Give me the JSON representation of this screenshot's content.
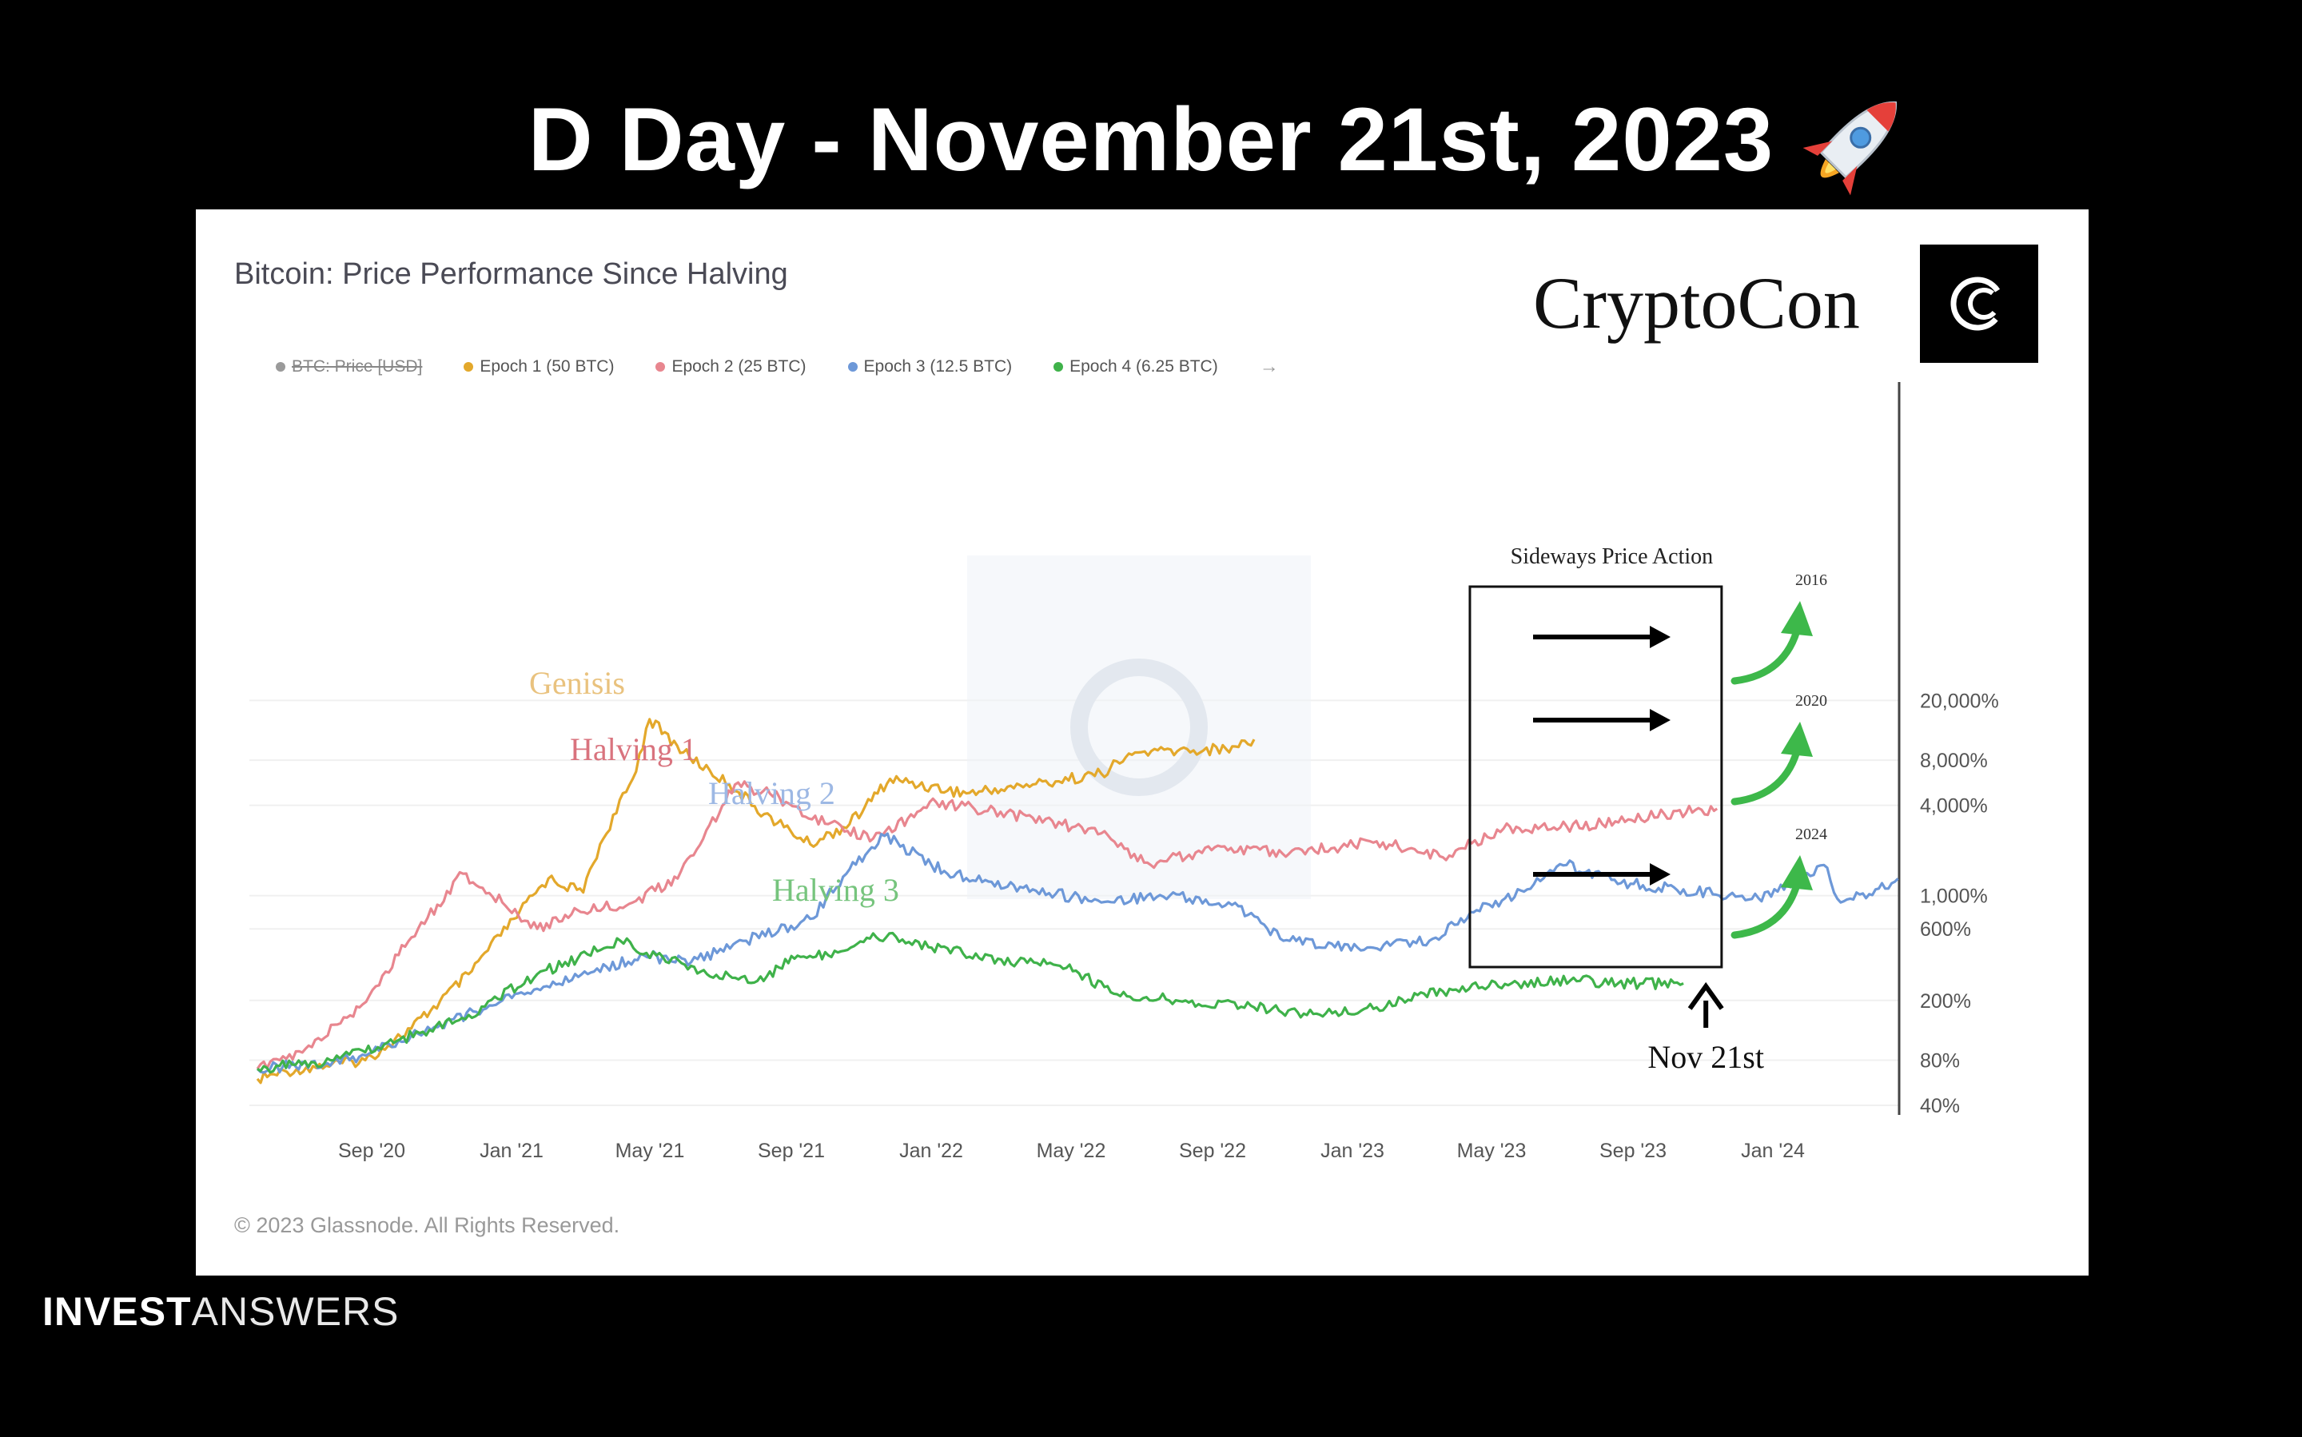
{
  "headline": "D Day - November 21st, 2023",
  "footer": {
    "brand_bold": "INVEST",
    "brand_light": "ANSWERS"
  },
  "brand": {
    "name": "CryptoCon",
    "logo_glyph": "C"
  },
  "copyright": "© 2023 Glassnode. All Rights Reserved.",
  "chart_data": {
    "type": "line",
    "title": "Bitcoin: Price Performance Since Halving",
    "legend": [
      {
        "name": "BTC: Price [USD]",
        "color": "#9a9a9a",
        "hidden": true
      },
      {
        "name": "Epoch 1 (50 BTC)",
        "color": "#e3a82b"
      },
      {
        "name": "Epoch 2 (25 BTC)",
        "color": "#e8868f"
      },
      {
        "name": "Epoch 3 (12.5 BTC)",
        "color": "#6d98d8"
      },
      {
        "name": "Epoch 4 (6.25 BTC)",
        "color": "#3fb24a"
      }
    ],
    "x_ticks": [
      "Sep '20",
      "Jan '21",
      "May '21",
      "Sep '21",
      "Jan '22",
      "May '22",
      "Sep '22",
      "Jan '23",
      "May '23",
      "Sep '23",
      "Jan '24"
    ],
    "x_range": [
      "2020-05-11",
      "2024-05-11"
    ],
    "y_scale": "log",
    "y_ticks": [
      "20,000%",
      "8,000%",
      "4,000%",
      "1,000%",
      "600%",
      "200%",
      "80%",
      "40%"
    ],
    "series": [
      {
        "color": "#e3a82b",
        "points": [
          [
            "2020-05-11",
            60
          ],
          [
            "2020-06-15",
            70
          ],
          [
            "2020-08-15",
            80
          ],
          [
            "2020-09-25",
            130
          ],
          [
            "2020-11-15",
            300
          ],
          [
            "2020-12-25",
            700
          ],
          [
            "2021-01-25",
            1300
          ],
          [
            "2021-02-25",
            1050
          ],
          [
            "2021-03-12",
            2200
          ],
          [
            "2021-04-10",
            6000
          ],
          [
            "2021-04-25",
            15000
          ],
          [
            "2021-05-25",
            9000
          ],
          [
            "2021-07-05",
            5500
          ],
          [
            "2021-08-05",
            3500
          ],
          [
            "2021-09-15",
            2200
          ],
          [
            "2021-10-20",
            3000
          ],
          [
            "2021-11-25",
            6000
          ],
          [
            "2022-02-01",
            4800
          ],
          [
            "2022-04-01",
            5500
          ],
          [
            "2022-06-01",
            6500
          ],
          [
            "2022-07-01",
            9000
          ],
          [
            "2022-09-20",
            9500
          ],
          [
            "2022-10-15",
            11000
          ]
        ]
      },
      {
        "color": "#e8868f",
        "points": [
          [
            "2020-05-11",
            70
          ],
          [
            "2020-06-20",
            90
          ],
          [
            "2020-08-10",
            180
          ],
          [
            "2020-10-01",
            600
          ],
          [
            "2020-11-10",
            1400
          ],
          [
            "2020-12-15",
            900
          ],
          [
            "2021-01-15",
            600
          ],
          [
            "2021-02-20",
            800
          ],
          [
            "2021-04-10",
            900
          ],
          [
            "2021-05-20",
            1300
          ],
          [
            "2021-07-10",
            5500
          ],
          [
            "2021-08-10",
            4800
          ],
          [
            "2021-10-01",
            3000
          ],
          [
            "2021-11-10",
            2400
          ],
          [
            "2022-01-05",
            4200
          ],
          [
            "2022-04-01",
            3300
          ],
          [
            "2022-06-01",
            2600
          ],
          [
            "2022-07-15",
            1600
          ],
          [
            "2022-09-10",
            2100
          ],
          [
            "2022-11-15",
            1900
          ],
          [
            "2023-02-01",
            2300
          ],
          [
            "2023-04-01",
            1800
          ],
          [
            "2023-05-25",
            2800
          ],
          [
            "2023-07-20",
            2900
          ],
          [
            "2023-09-10",
            3100
          ],
          [
            "2023-10-15",
            3500
          ],
          [
            "2023-12-01",
            3800
          ]
        ]
      },
      {
        "color": "#6d98d8",
        "points": [
          [
            "2020-05-11",
            70
          ],
          [
            "2020-08-01",
            80
          ],
          [
            "2020-10-01",
            120
          ],
          [
            "2020-12-15",
            200
          ],
          [
            "2021-03-01",
            300
          ],
          [
            "2021-04-20",
            400
          ],
          [
            "2021-06-01",
            360
          ],
          [
            "2021-07-20",
            500
          ],
          [
            "2021-09-15",
            700
          ],
          [
            "2021-10-20",
            1500
          ],
          [
            "2021-11-20",
            2500
          ],
          [
            "2022-01-15",
            1400
          ],
          [
            "2022-04-01",
            1100
          ],
          [
            "2022-06-01",
            900
          ],
          [
            "2022-08-01",
            1000
          ],
          [
            "2022-10-01",
            850
          ],
          [
            "2022-11-10",
            500
          ],
          [
            "2023-01-15",
            450
          ],
          [
            "2023-03-20",
            500
          ],
          [
            "2023-05-01",
            800
          ],
          [
            "2023-06-15",
            1100
          ],
          [
            "2023-07-20",
            1600
          ],
          [
            "2023-09-15",
            1200
          ],
          [
            "2023-11-01",
            1100
          ],
          [
            "2024-01-01",
            950
          ],
          [
            "2024-02-10",
            1200
          ],
          [
            "2024-03-05",
            1600
          ],
          [
            "2024-03-20",
            900
          ],
          [
            "2024-04-20",
            1100
          ],
          [
            "2024-05-10",
            1300
          ]
        ]
      },
      {
        "color": "#3fb24a",
        "points": [
          [
            "2020-05-11",
            70
          ],
          [
            "2020-07-15",
            80
          ],
          [
            "2020-09-15",
            110
          ],
          [
            "2020-11-15",
            160
          ],
          [
            "2021-01-15",
            300
          ],
          [
            "2021-02-20",
            380
          ],
          [
            "2021-03-30",
            500
          ],
          [
            "2021-05-01",
            400
          ],
          [
            "2021-06-15",
            300
          ],
          [
            "2021-07-30",
            270
          ],
          [
            "2021-09-01",
            380
          ],
          [
            "2021-10-01",
            400
          ],
          [
            "2021-11-10",
            560
          ],
          [
            "2022-01-01",
            450
          ],
          [
            "2022-03-01",
            380
          ],
          [
            "2022-05-01",
            330
          ],
          [
            "2022-06-15",
            220
          ],
          [
            "2022-08-15",
            200
          ],
          [
            "2022-10-15",
            180
          ],
          [
            "2022-12-01",
            160
          ],
          [
            "2023-02-01",
            180
          ],
          [
            "2023-04-01",
            230
          ],
          [
            "2023-06-01",
            260
          ],
          [
            "2023-08-01",
            270
          ],
          [
            "2023-09-15",
            260
          ],
          [
            "2023-11-01",
            260
          ]
        ]
      }
    ],
    "labels": {
      "genesis": "Genisis",
      "halving1": "Halving 1",
      "halving2": "Halving 2",
      "halving3": "Halving 3"
    },
    "annotations": {
      "box_title": "Sideways Price Action",
      "box_range": [
        "2023-04-25",
        "2023-12-05"
      ],
      "marker_date": "2023-11-21",
      "marker_label": "Nov 21st",
      "arrow_years": [
        "2016",
        "2020",
        "2024"
      ]
    }
  }
}
